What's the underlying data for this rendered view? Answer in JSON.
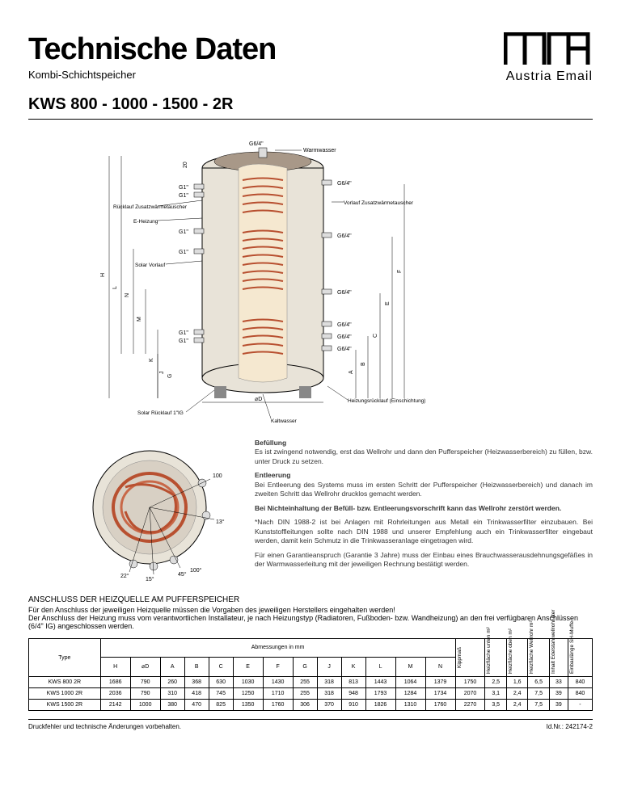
{
  "header": {
    "title": "Technische Daten",
    "subtitle": "Kombi-Schichtspeicher",
    "model": "KWS 800 - 1000 - 1500 - 2R",
    "logo_text": "Austria Email"
  },
  "diagram_labels": {
    "top": "G6/4\"",
    "warmwasser": "Warmwasser",
    "g1": "G1\"",
    "g64": "G6/4\"",
    "rucklauf_zusatz": "Rücklauf Zusatzwärmetauscher",
    "vorlauf_zusatz": "Vorlauf Zusatzwärmetauscher",
    "eheizung": "E-Heizung",
    "solar_vorlauf": "Solar Vorlauf",
    "solar_rucklauf": "Solar Rücklauf 1\"IG",
    "heizungsrucklauf": "Heizungsrücklauf (Einschichtung)",
    "kaltwasser": "Kaltwasser",
    "diameter": "⌀D",
    "dim_h": "H",
    "dim_l": "L",
    "dim_n": "N",
    "dim_m": "M",
    "dim_k": "K",
    "dim_j": "J",
    "dim_g": "G",
    "dim_a": "A",
    "dim_b": "B",
    "dim_c": "C",
    "dim_e": "E",
    "dim_f": "F",
    "dim_20": "20",
    "angle_100a": "100",
    "angle_13": "13°",
    "angle_22": "22°",
    "angle_15": "15°",
    "angle_45": "45°",
    "angle_100b": "100°"
  },
  "text": {
    "befullung_h": "Befüllung",
    "befullung": "Es ist zwingend notwendig, erst das Wellrohr und dann den Pufferspeicher (Heizwasserbereich) zu füllen, bzw. unter Druck zu setzen.",
    "entleerung_h": "Entleerung",
    "entleerung": "Bei Entleerung des Systems muss im ersten Schritt der Pufferspeicher (Heizwasserbereich) und danach im zweiten Schritt das Wellrohr drucklos gemacht werden.",
    "warning": "Bei Nichteinhaltung der Befüll- bzw. Entleerungsvorschrift kann das Wellrohr zerstört werden.",
    "din": "*Nach DIN 1988-2 ist bei Anlagen mit Rohrleitungen aus Metall ein Trinkwasserfilter einzubauen. Bei Kunststoffleitungen sollte nach DIN 1988 und unserer Empfehlung auch ein Trinkwasserfilter eingebaut werden, damit kein Schmutz in die Trinkwasseranlage eingetragen wird.",
    "garantie": "Für einen Garantieanspruch (Garantie 3 Jahre) muss der Einbau eines Brauchwasserausdehnungsgefäßes in der Warmwasserleitung mit der jeweiligen Rechnung bestätigt werden.",
    "anschluss_h": "ANSCHLUSS DER HEIZQUELLE AM PUFFERSPEICHER",
    "anschluss1": "Für den Anschluss der jeweiligen Heizquelle müssen die Vorgaben des jeweiligen Herstellers eingehalten werden!",
    "anschluss2": "Der Anschluss der Heizung muss vom verantwortlichen Installateur, je nach Heizungstyp (Radiatoren, Fußboden- bzw. Wandheizung) an den frei verfügbaren Anschlüssen (6/4\" IG) angeschlossen werden."
  },
  "table": {
    "header_abmessungen": "Abmessungen in mm",
    "type_label": "Type",
    "cols": [
      "H",
      "⌀D",
      "A",
      "B",
      "C",
      "E",
      "F",
      "G",
      "J",
      "K",
      "L",
      "M",
      "N"
    ],
    "vcols": [
      "Kippmaß",
      "Heizfläche unten m²",
      "Heizfläche oben m²",
      "Heizfläche Wellrohr m²",
      "Inhalt Edelstahlwellrohr liter",
      "Einbaulänge SH-Muffe"
    ],
    "rows": [
      {
        "type": "KWS 800 2R",
        "vals": [
          "1686",
          "790",
          "260",
          "368",
          "630",
          "1030",
          "1430",
          "255",
          "318",
          "813",
          "1443",
          "1064",
          "1379",
          "1750",
          "2,5",
          "1,6",
          "6,5",
          "33",
          "840"
        ]
      },
      {
        "type": "KWS 1000 2R",
        "vals": [
          "2036",
          "790",
          "310",
          "418",
          "745",
          "1250",
          "1710",
          "255",
          "318",
          "948",
          "1793",
          "1284",
          "1734",
          "2070",
          "3,1",
          "2,4",
          "7,5",
          "39",
          "840"
        ]
      },
      {
        "type": "KWS 1500 2R",
        "vals": [
          "2142",
          "1000",
          "380",
          "470",
          "825",
          "1350",
          "1760",
          "306",
          "370",
          "910",
          "1826",
          "1310",
          "1760",
          "2270",
          "3,5",
          "2,4",
          "7,5",
          "39",
          "-"
        ]
      }
    ]
  },
  "footer": {
    "left": "Druckfehler und technische Änderungen vorbehalten.",
    "right": "Id.Nr.: 242174-2"
  },
  "colors": {
    "tank_fill": "#e8e3d8",
    "cutaway_fill": "#f5e8d0",
    "coil": "#b85030",
    "top_shade": "#a89888"
  }
}
